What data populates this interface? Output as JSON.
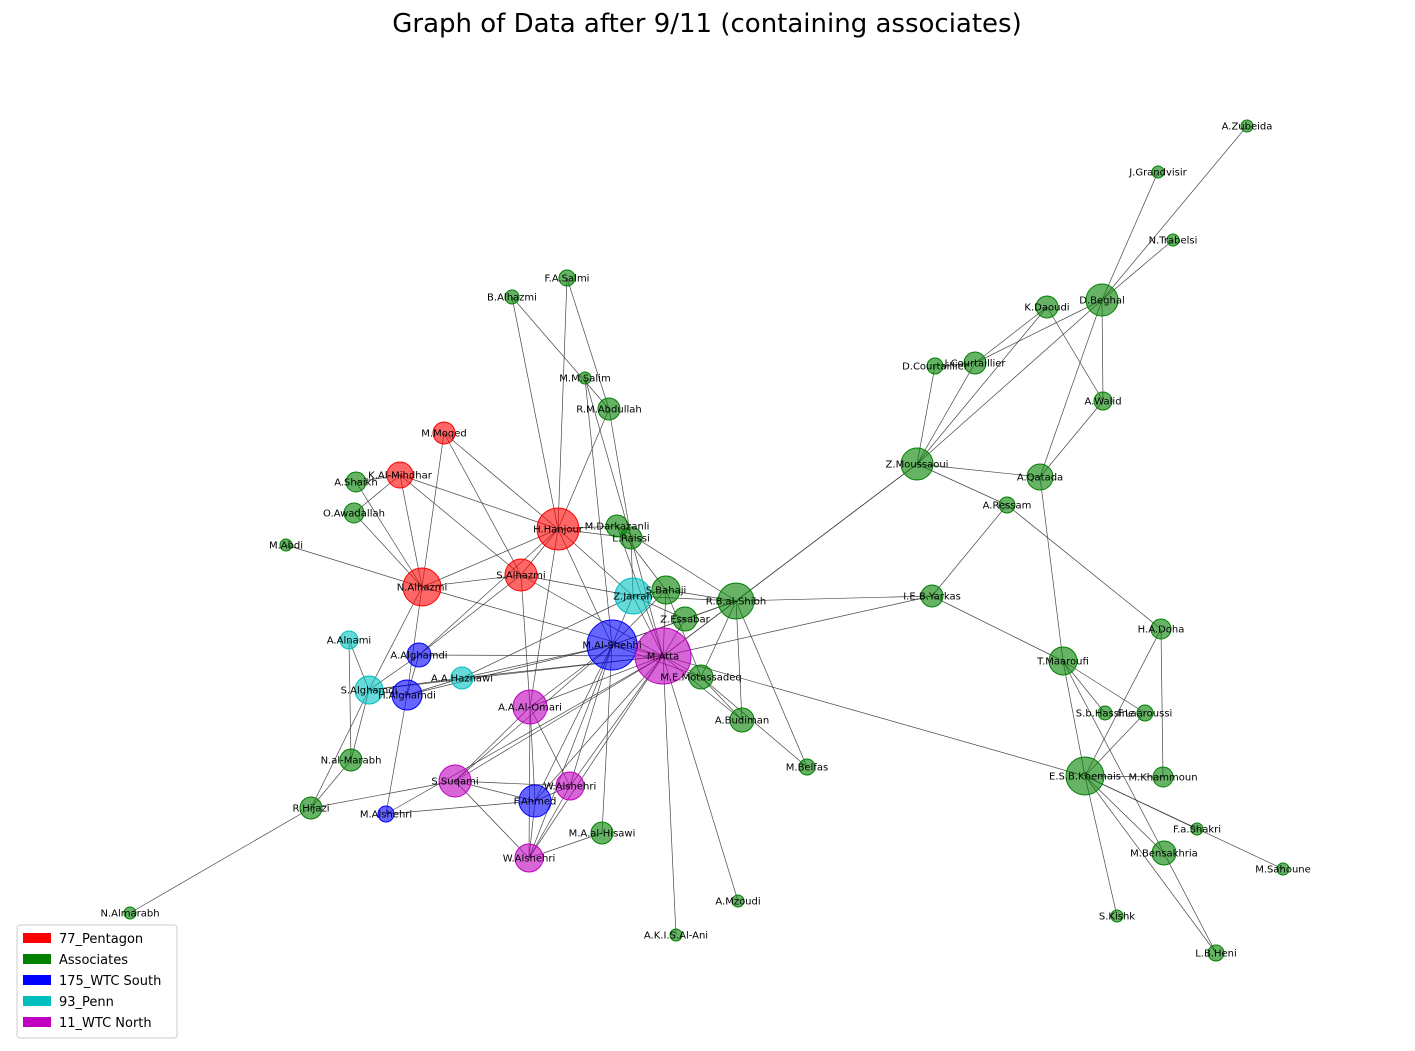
{
  "title": "Graph of Data after 9/11 (containing associates)",
  "colors": {
    "77_Pentagon": "#ff0000",
    "Associates": "#008000",
    "175_WTC South": "#0000ff",
    "93_Penn": "#00bfbf",
    "11_WTC North": "#bf00bf"
  },
  "legend": [
    {
      "label": "77_Pentagon",
      "color": "#ff0000"
    },
    {
      "label": "Associates",
      "color": "#008000"
    },
    {
      "label": "175_WTC South",
      "color": "#0000ff"
    },
    {
      "label": "93_Penn",
      "color": "#00bfbf"
    },
    {
      "label": "11_WTC North",
      "color": "#bf00bf"
    }
  ],
  "nodes": [
    {
      "id": "A.Zubeida",
      "group": "Associates"
    },
    {
      "id": "J.Grandvisir",
      "group": "Associates"
    },
    {
      "id": "N.Trabelsi",
      "group": "Associates"
    },
    {
      "id": "K.Daoudi",
      "group": "Associates"
    },
    {
      "id": "D.Beghal",
      "group": "Associates"
    },
    {
      "id": "D.Courtaillier",
      "group": "Associates"
    },
    {
      "id": "J.Courtaillier",
      "group": "Associates"
    },
    {
      "id": "A.Walid",
      "group": "Associates"
    },
    {
      "id": "Z.Moussaoui",
      "group": "Associates"
    },
    {
      "id": "A.Qatada",
      "group": "Associates"
    },
    {
      "id": "A.Ressam",
      "group": "Associates"
    },
    {
      "id": "I.E.B.Yarkas",
      "group": "Associates"
    },
    {
      "id": "H.A.Doha",
      "group": "Associates"
    },
    {
      "id": "T.Maaroufi",
      "group": "Associates"
    },
    {
      "id": "S.b.Hassine",
      "group": "Associates"
    },
    {
      "id": "F.Laaroussi",
      "group": "Associates"
    },
    {
      "id": "E.S.B.Khemais",
      "group": "Associates"
    },
    {
      "id": "M.Khammoun",
      "group": "Associates"
    },
    {
      "id": "F.a.Shakri",
      "group": "Associates"
    },
    {
      "id": "M.Bensakhria",
      "group": "Associates"
    },
    {
      "id": "M.Sahoune",
      "group": "Associates"
    },
    {
      "id": "S.Kishk",
      "group": "Associates"
    },
    {
      "id": "L.B.Heni",
      "group": "Associates"
    },
    {
      "id": "F.A.Salmi",
      "group": "Associates"
    },
    {
      "id": "B.Alhazmi",
      "group": "Associates"
    },
    {
      "id": "M.M.Salim",
      "group": "Associates"
    },
    {
      "id": "R.M.Abdullah",
      "group": "Associates"
    },
    {
      "id": "M.Moqed",
      "group": "77_Pentagon"
    },
    {
      "id": "K.Al-Mihdhar",
      "group": "77_Pentagon"
    },
    {
      "id": "A.Shaikh",
      "group": "Associates"
    },
    {
      "id": "O.Awadallah",
      "group": "Associates"
    },
    {
      "id": "H.Hanjour",
      "group": "77_Pentagon"
    },
    {
      "id": "M.Darkazanli",
      "group": "Associates"
    },
    {
      "id": "L.Raissi",
      "group": "Associates"
    },
    {
      "id": "M.Abdi",
      "group": "Associates"
    },
    {
      "id": "N.Alhazmi",
      "group": "77_Pentagon"
    },
    {
      "id": "S.Alhazmi",
      "group": "77_Pentagon"
    },
    {
      "id": "Z.Jarrah",
      "group": "93_Penn"
    },
    {
      "id": "S.Bahaji",
      "group": "Associates"
    },
    {
      "id": "R.B.al-Shibh",
      "group": "Associates"
    },
    {
      "id": "Z.Essabar",
      "group": "Associates"
    },
    {
      "id": "A.Alnami",
      "group": "93_Penn"
    },
    {
      "id": "A.Alghamdi",
      "group": "175_WTC South"
    },
    {
      "id": "M.Al-Shehhi",
      "group": "175_WTC South"
    },
    {
      "id": "M.Atta",
      "group": "11_WTC North"
    },
    {
      "id": "M.E.Motassadeq",
      "group": "Associates"
    },
    {
      "id": "A.A.Haznawi",
      "group": "93_Penn"
    },
    {
      "id": "S.Alghamdi",
      "group": "93_Penn"
    },
    {
      "id": "H.Alghamdi",
      "group": "175_WTC South"
    },
    {
      "id": "A.A.Al-Omari",
      "group": "11_WTC North"
    },
    {
      "id": "A.Budiman",
      "group": "Associates"
    },
    {
      "id": "M.Belfas",
      "group": "Associates"
    },
    {
      "id": "N.al-Marabh",
      "group": "Associates"
    },
    {
      "id": "S.Suqami",
      "group": "11_WTC North"
    },
    {
      "id": "W.Alshehri",
      "group": "11_WTC North"
    },
    {
      "id": "F.Ahmed",
      "group": "175_WTC South"
    },
    {
      "id": "R.Hijazi",
      "group": "Associates"
    },
    {
      "id": "M.Alshehri",
      "group": "175_WTC South"
    },
    {
      "id": "M.A.al-Hisawi",
      "group": "Associates"
    },
    {
      "id": "W.Alshehri ",
      "group": "11_WTC North"
    },
    {
      "id": "N.Almarabh",
      "group": "Associates"
    },
    {
      "id": "A.Mzoudi",
      "group": "Associates"
    },
    {
      "id": "A.K.I.S.Al-Ani",
      "group": "Associates"
    }
  ],
  "edges": [
    [
      "A.Zubeida",
      "D.Beghal"
    ],
    [
      "J.Grandvisir",
      "D.Beghal"
    ],
    [
      "N.Trabelsi",
      "D.Beghal"
    ],
    [
      "K.Daoudi",
      "A.Walid"
    ],
    [
      "K.Daoudi",
      "J.Courtaillier"
    ],
    [
      "K.Daoudi",
      "Z.Moussaoui"
    ],
    [
      "D.Beghal",
      "J.Courtaillier"
    ],
    [
      "D.Beghal",
      "Z.Moussaoui"
    ],
    [
      "D.Beghal",
      "A.Walid"
    ],
    [
      "D.Beghal",
      "A.Qatada"
    ],
    [
      "D.Courtaillier",
      "J.Courtaillier"
    ],
    [
      "D.Courtaillier",
      "Z.Moussaoui"
    ],
    [
      "J.Courtaillier",
      "Z.Moussaoui"
    ],
    [
      "A.Walid",
      "A.Qatada"
    ],
    [
      "Z.Moussaoui",
      "A.Qatada"
    ],
    [
      "Z.Moussaoui",
      "A.Ressam"
    ],
    [
      "Z.Moussaoui",
      "R.B.al-Shibh"
    ],
    [
      "Z.Moussaoui",
      "M.Atta"
    ],
    [
      "A.Qatada",
      "T.Maaroufi"
    ],
    [
      "A.Ressam",
      "I.E.B.Yarkas"
    ],
    [
      "A.Ressam",
      "H.A.Doha"
    ],
    [
      "I.E.B.Yarkas",
      "T.Maaroufi"
    ],
    [
      "I.E.B.Yarkas",
      "R.B.al-Shibh"
    ],
    [
      "I.E.B.Yarkas",
      "M.Atta"
    ],
    [
      "H.A.Doha",
      "E.S.B.Khemais"
    ],
    [
      "H.A.Doha",
      "M.Khammoun"
    ],
    [
      "T.Maaroufi",
      "E.S.B.Khemais"
    ],
    [
      "T.Maaroufi",
      "S.b.Hassine"
    ],
    [
      "T.Maaroufi",
      "F.Laaroussi"
    ],
    [
      "T.Maaroufi",
      "M.Bensakhria"
    ],
    [
      "F.Laaroussi",
      "E.S.B.Khemais"
    ],
    [
      "M.Khammoun",
      "E.S.B.Khemais"
    ],
    [
      "E.S.B.Khemais",
      "F.a.Shakri"
    ],
    [
      "E.S.B.Khemais",
      "M.Bensakhria"
    ],
    [
      "E.S.B.Khemais",
      "M.Sahoune"
    ],
    [
      "E.S.B.Khemais",
      "S.Kishk"
    ],
    [
      "E.S.B.Khemais",
      "L.B.Heni"
    ],
    [
      "E.S.B.Khemais",
      "M.Atta"
    ],
    [
      "M.Bensakhria",
      "L.B.Heni"
    ],
    [
      "F.A.Salmi",
      "H.Hanjour"
    ],
    [
      "F.A.Salmi",
      "R.M.Abdullah"
    ],
    [
      "B.Alhazmi",
      "H.Hanjour"
    ],
    [
      "B.Alhazmi",
      "R.M.Abdullah"
    ],
    [
      "M.M.Salim",
      "L.Raissi"
    ],
    [
      "M.M.Salim",
      "M.Al-Shehhi"
    ],
    [
      "R.M.Abdullah",
      "H.Hanjour"
    ],
    [
      "R.M.Abdullah",
      "L.Raissi"
    ],
    [
      "M.Moqed",
      "H.Hanjour"
    ],
    [
      "M.Moqed",
      "N.Alhazmi"
    ],
    [
      "M.Moqed",
      "S.Alhazmi"
    ],
    [
      "K.Al-Mihdhar",
      "N.Alhazmi"
    ],
    [
      "K.Al-Mihdhar",
      "H.Hanjour"
    ],
    [
      "K.Al-Mihdhar",
      "S.Alhazmi"
    ],
    [
      "K.Al-Mihdhar",
      "A.Shaikh"
    ],
    [
      "K.Al-Mihdhar",
      "O.Awadallah"
    ],
    [
      "A.Shaikh",
      "N.Alhazmi"
    ],
    [
      "O.Awadallah",
      "N.Alhazmi"
    ],
    [
      "M.Abdi",
      "N.Alhazmi"
    ],
    [
      "H.Hanjour",
      "N.Alhazmi"
    ],
    [
      "H.Hanjour",
      "S.Alhazmi"
    ],
    [
      "H.Hanjour",
      "L.Raissi"
    ],
    [
      "H.Hanjour",
      "M.Darkazanli"
    ],
    [
      "H.Hanjour",
      "Z.Jarrah"
    ],
    [
      "H.Hanjour",
      "M.Al-Shehhi"
    ],
    [
      "H.Hanjour",
      "A.A.Al-Omari"
    ],
    [
      "H.Hanjour",
      "A.Alghamdi"
    ],
    [
      "N.Alhazmi",
      "S.Alhazmi"
    ],
    [
      "N.Alhazmi",
      "M.Atta"
    ],
    [
      "N.Alhazmi",
      "S.Alghamdi"
    ],
    [
      "N.Alhazmi",
      "H.Alghamdi"
    ],
    [
      "S.Alhazmi",
      "Z.Jarrah"
    ],
    [
      "S.Alhazmi",
      "A.A.Al-Omari"
    ],
    [
      "S.Alhazmi",
      "A.Alghamdi"
    ],
    [
      "S.Alhazmi",
      "M.Atta"
    ],
    [
      "M.Darkazanli",
      "M.Atta"
    ],
    [
      "M.Darkazanli",
      "S.Bahaji"
    ],
    [
      "M.Darkazanli",
      "R.B.al-Shibh"
    ],
    [
      "L.Raissi",
      "M.Atta"
    ],
    [
      "L.Raissi",
      "Z.Jarrah"
    ],
    [
      "Z.Jarrah",
      "S.Bahaji"
    ],
    [
      "Z.Jarrah",
      "R.B.al-Shibh"
    ],
    [
      "Z.Jarrah",
      "M.Atta"
    ],
    [
      "Z.Jarrah",
      "M.Al-Shehhi"
    ],
    [
      "Z.Jarrah",
      "A.A.Haznawi"
    ],
    [
      "Z.Jarrah",
      "Z.Essabar"
    ],
    [
      "S.Bahaji",
      "R.B.al-Shibh"
    ],
    [
      "S.Bahaji",
      "M.Atta"
    ],
    [
      "S.Bahaji",
      "M.Al-Shehhi"
    ],
    [
      "S.Bahaji",
      "M.E.Motassadeq"
    ],
    [
      "R.B.al-Shibh",
      "M.Atta"
    ],
    [
      "R.B.al-Shibh",
      "M.Al-Shehhi"
    ],
    [
      "R.B.al-Shibh",
      "M.E.Motassadeq"
    ],
    [
      "R.B.al-Shibh",
      "A.Budiman"
    ],
    [
      "R.B.al-Shibh",
      "M.Belfas"
    ],
    [
      "R.B.al-Shibh",
      "Z.Essabar"
    ],
    [
      "Z.Essabar",
      "M.Atta"
    ],
    [
      "Z.Essabar",
      "M.Al-Shehhi"
    ],
    [
      "A.Alnami",
      "S.Alghamdi"
    ],
    [
      "A.Alghamdi",
      "S.Alghamdi"
    ],
    [
      "A.Alghamdi",
      "H.Alghamdi"
    ],
    [
      "A.Alghamdi",
      "M.Atta"
    ],
    [
      "M.Al-Shehhi",
      "M.Atta"
    ],
    [
      "M.Al-Shehhi",
      "A.A.Al-Omari"
    ],
    [
      "M.Al-Shehhi",
      "S.Suqami"
    ],
    [
      "M.Al-Shehhi",
      "F.Ahmed"
    ],
    [
      "M.Al-Shehhi",
      "W.Alshehri"
    ],
    [
      "M.Al-Shehhi",
      "W.Alshehri "
    ],
    [
      "M.Al-Shehhi",
      "M.E.Motassadeq"
    ],
    [
      "M.Al-Shehhi",
      "A.A.Haznawi"
    ],
    [
      "M.Al-Shehhi",
      "M.A.al-Hisawi"
    ],
    [
      "M.Al-Shehhi",
      "H.Alghamdi"
    ],
    [
      "M.Atta",
      "M.E.Motassadeq"
    ],
    [
      "M.Atta",
      "A.A.Al-Omari"
    ],
    [
      "M.Atta",
      "S.Suqami"
    ],
    [
      "M.Atta",
      "W.Alshehri"
    ],
    [
      "M.Atta",
      "W.Alshehri "
    ],
    [
      "M.Atta",
      "F.Ahmed"
    ],
    [
      "M.Atta",
      "A.Budiman"
    ],
    [
      "M.Atta",
      "A.A.Haznawi"
    ],
    [
      "M.Atta",
      "M.Alshehri"
    ],
    [
      "M.Atta",
      "A.Mzoudi"
    ],
    [
      "M.Atta",
      "A.K.I.S.Al-Ani"
    ],
    [
      "M.Atta",
      "S.Alghamdi"
    ],
    [
      "M.E.Motassadeq",
      "A.Budiman"
    ],
    [
      "M.E.Motassadeq",
      "M.Belfas"
    ],
    [
      "A.A.Haznawi",
      "S.Alghamdi"
    ],
    [
      "A.A.Haznawi",
      "H.Alghamdi"
    ],
    [
      "S.Alghamdi",
      "H.Alghamdi"
    ],
    [
      "S.Alghamdi",
      "N.al-Marabh"
    ],
    [
      "H.Alghamdi",
      "M.Alshehri"
    ],
    [
      "A.A.Al-Omari",
      "S.Suqami"
    ],
    [
      "A.A.Al-Omari",
      "W.Alshehri"
    ],
    [
      "A.A.Al-Omari",
      "W.Alshehri "
    ],
    [
      "A.A.Al-Omari",
      "F.Ahmed"
    ],
    [
      "N.al-Marabh",
      "R.Hijazi"
    ],
    [
      "N.al-Marabh",
      "A.Alnami"
    ],
    [
      "S.Suqami",
      "W.Alshehri"
    ],
    [
      "S.Suqami",
      "W.Alshehri "
    ],
    [
      "S.Suqami",
      "F.Ahmed"
    ],
    [
      "S.Suqami",
      "R.Hijazi"
    ],
    [
      "W.Alshehri",
      "W.Alshehri "
    ],
    [
      "W.Alshehri",
      "F.Ahmed"
    ],
    [
      "F.Ahmed",
      "M.Alshehri"
    ],
    [
      "F.Ahmed",
      "W.Alshehri "
    ],
    [
      "R.Hijazi",
      "N.Almarabh"
    ],
    [
      "R.Hijazi",
      "S.Alghamdi"
    ],
    [
      "M.A.al-Hisawi",
      "W.Alshehri "
    ]
  ]
}
